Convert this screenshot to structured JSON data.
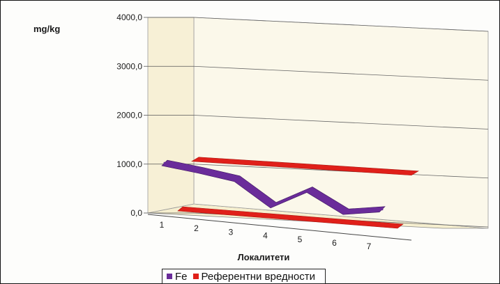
{
  "chart_data": {
    "type": "area",
    "ylabel": "mg/kg",
    "xlabel": "Локалитети",
    "categories": [
      "1",
      "2",
      "3",
      "4",
      "5",
      "6",
      "7"
    ],
    "ylim": [
      0,
      4000
    ],
    "y_ticks": [
      "0,0",
      "1000,0",
      "2000,0",
      "3000,0",
      "4000,0"
    ],
    "y_tick_values": [
      0,
      1000,
      2000,
      3000,
      4000
    ],
    "series": [
      {
        "name": "Fe",
        "values": [
          1080,
          950,
          800,
          280,
          620,
          190,
          260
        ]
      },
      {
        "name": "Референтни вредности",
        "values": [
          0,
          0,
          0,
          0,
          0,
          0,
          0
        ]
      }
    ],
    "reference_band": {
      "low": 0,
      "high": 1000
    },
    "legend_position": "bottom",
    "grid": true,
    "colors": {
      "Fe": "#6a2c9a",
      "Референтни вредности": "#e0201a"
    }
  }
}
